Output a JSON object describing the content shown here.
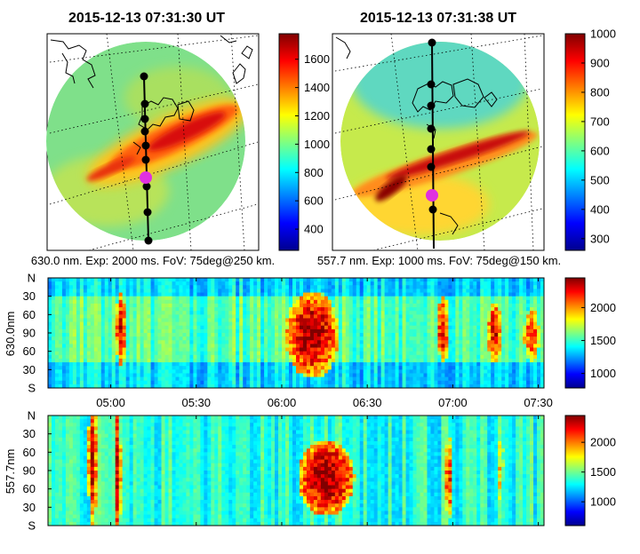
{
  "panels": [
    {
      "title": "2015-12-13 07:31:30 UT",
      "caption": "630.0 nm. Exp: 2000 ms. FoV: 75deg@250 km.",
      "colorbar": {
        "min": 250,
        "max": 1780,
        "ticks": [
          400,
          600,
          800,
          1000,
          1200,
          1400,
          1600
        ]
      }
    },
    {
      "title": "2015-12-13 07:31:38 UT",
      "caption": "557.7 nm. Exp: 1000 ms. FoV: 75deg@150 km.",
      "colorbar": {
        "min": 260,
        "max": 1000,
        "ticks": [
          300,
          400,
          500,
          600,
          700,
          800,
          900,
          1000
        ]
      }
    }
  ],
  "keograms": [
    {
      "ylabel": "630.0nm",
      "yticks": [
        "N",
        "30",
        "60",
        "90",
        "60",
        "30",
        "S"
      ],
      "colorbar": {
        "min": 780,
        "max": 2450,
        "ticks": [
          1000,
          1500,
          2000
        ]
      }
    },
    {
      "ylabel": "557.7nm",
      "yticks": [
        "N",
        "30",
        "60",
        "90",
        "60",
        "30",
        "S"
      ],
      "colorbar": {
        "min": 600,
        "max": 2450,
        "ticks": [
          1000,
          1500,
          2000
        ]
      }
    }
  ],
  "time_axis": {
    "start": "04:38",
    "end": "07:32",
    "ticks": [
      "05:00",
      "05:30",
      "06:00",
      "06:30",
      "07:00",
      "07:30"
    ]
  },
  "chart_data": [
    {
      "type": "heatmap",
      "title": "2015-12-13 07:31:30 UT",
      "xlabel": "630.0 nm. Exp: 2000 ms. FoV: 75deg@250 km.",
      "colorbar_range": [
        250,
        1780
      ],
      "colorbar_ticks": [
        400,
        600,
        800,
        1000,
        1200,
        1400,
        1600
      ],
      "background_level": 950,
      "arc_peak_level": 1600,
      "colormap": "jet"
    },
    {
      "type": "heatmap",
      "title": "2015-12-13 07:31:38 UT",
      "xlabel": "557.7 nm. Exp: 1000 ms. FoV: 75deg@150 km.",
      "colorbar_range": [
        260,
        1000
      ],
      "colorbar_ticks": [
        300,
        400,
        500,
        600,
        700,
        800,
        900,
        1000
      ],
      "background_level": 640,
      "arc_peak_level": 1000,
      "colormap": "jet"
    },
    {
      "type": "heatmap",
      "ylabel": "630.0nm",
      "x_tick_labels": [
        "05:00",
        "05:30",
        "06:00",
        "06:30",
        "07:00",
        "07:30"
      ],
      "y_tick_labels": [
        "N",
        "30",
        "60",
        "90",
        "60",
        "30",
        "S"
      ],
      "colorbar_range": [
        780,
        2450
      ],
      "colorbar_ticks": [
        1000,
        1500,
        2000
      ],
      "enhancements": [
        {
          "time": "05:03",
          "level": 2300
        },
        {
          "time": "06:10",
          "level": 2400
        },
        {
          "time": "06:56",
          "level": 2300
        },
        {
          "time": "07:14",
          "level": 2300
        },
        {
          "time": "07:27",
          "level": 2200
        }
      ]
    },
    {
      "type": "heatmap",
      "ylabel": "557.7nm",
      "x_tick_labels": [
        "05:00",
        "05:30",
        "06:00",
        "06:30",
        "07:00",
        "07:30"
      ],
      "y_tick_labels": [
        "N",
        "30",
        "60",
        "90",
        "60",
        "30",
        "S"
      ],
      "colorbar_range": [
        600,
        2450
      ],
      "colorbar_ticks": [
        1000,
        1500,
        2000
      ],
      "enhancements": [
        {
          "time": "04:53",
          "level": 2300
        },
        {
          "time": "05:02",
          "level": 2400
        },
        {
          "time": "06:15",
          "level": 2450
        },
        {
          "time": "06:58",
          "level": 2200
        },
        {
          "time": "07:16",
          "level": 1800
        }
      ]
    }
  ]
}
